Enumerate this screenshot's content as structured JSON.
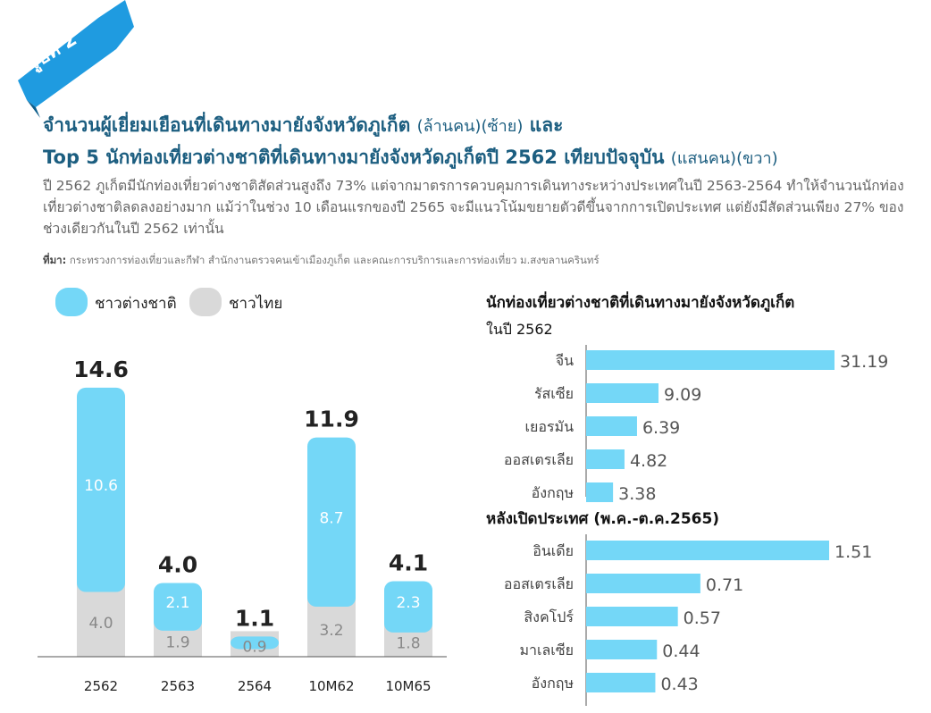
{
  "header": {
    "figure_label": "รูปที่ 2",
    "title_line1": "จำนวนผู้เยี่ยมเยือนที่เดินทางมายังจังหวัดภูเก็ต",
    "title_line1_unit": "(ล้านคน)(ซ้าย)",
    "title_line1_and": "และ",
    "title_line2": "Top 5 นักท่องเที่ยวต่างชาติที่เดินทางมายังจังหวัดภูเก็ตปี 2562 เทียบปัจจุบัน",
    "title_line2_unit": "(แสนคน)(ขวา)",
    "description": "ปี 2562 ภูเก็ตมีนักท่องเที่ยวต่างชาติสัดส่วนสูงถึง 73% แต่จากมาตรการควบคุมการเดินทางระหว่างประเทศในปี 2563-2564 ทำให้จำนวนนักท่องเที่ยวต่างชาติลดลงอย่างมาก แม้ว่าในช่วง 10 เดือนแรกของปี 2565 จะมีแนวโน้มขยายตัวดีขึ้นจากการเปิดประเทศ แต่ยังมีสัดส่วนเพียง 27% ของช่วงเดียวกันในปี 2562 เท่านั้น",
    "source_label": "ที่มา:",
    "source_text": "กระทรวงการท่องเที่ยวและกีฬา สำนักงานตรวจคนเข้าเมืองภูเก็ต และคณะการบริการและการท่องเที่ยว ม.สงขลานครินทร์"
  },
  "colors": {
    "foreign": "#74d7f7",
    "thai": "#d9d9d9",
    "ribbon": "#1f9be0",
    "title": "#1c5e80"
  },
  "chart_data": [
    {
      "type": "bar",
      "stacked": true,
      "legend_placement": "top-left",
      "categories": [
        "2562",
        "2563",
        "2564",
        "10M62",
        "10M65"
      ],
      "series": [
        {
          "name": "ชาวไทย",
          "values": [
            4.0,
            1.9,
            0.9,
            3.2,
            1.8
          ],
          "labels": [
            "4.0",
            "1.9",
            "0.9",
            "3.2",
            "1.8"
          ]
        },
        {
          "name": "ชาวต่างชาติ",
          "values": [
            10.6,
            2.1,
            0.2,
            8.7,
            2.3
          ],
          "labels": [
            "10.6",
            "2.1",
            "",
            "8.7",
            "2.3"
          ]
        }
      ],
      "totals": [
        "14.6",
        "4.0",
        "1.1",
        "11.9",
        "4.1"
      ],
      "ylim": [
        0,
        16
      ]
    },
    {
      "type": "bar",
      "orientation": "horizontal",
      "title": "นักท่องเที่ยวต่างชาติที่เดินทางมายังจังหวัดภูเก็ต",
      "subtitle": "ในปี 2562",
      "categories": [
        "จีน",
        "รัสเซีย",
        "เยอรมัน",
        "ออสเตรเลีย",
        "อังกฤษ"
      ],
      "values": [
        31.19,
        9.09,
        6.39,
        4.82,
        3.38
      ],
      "labels": [
        "31.19",
        "9.09",
        "6.39",
        "4.82",
        "3.38"
      ]
    },
    {
      "type": "bar",
      "orientation": "horizontal",
      "title": "หลังเปิดประเทศ (พ.ค.-ต.ค.2565)",
      "categories": [
        "อินเดีย",
        "ออสเตรเลีย",
        "สิงคโปร์",
        "มาเลเซีย",
        "อังกฤษ"
      ],
      "values": [
        1.51,
        0.71,
        0.57,
        0.44,
        0.43
      ],
      "labels": [
        "1.51",
        "0.71",
        "0.57",
        "0.44",
        "0.43"
      ]
    }
  ]
}
